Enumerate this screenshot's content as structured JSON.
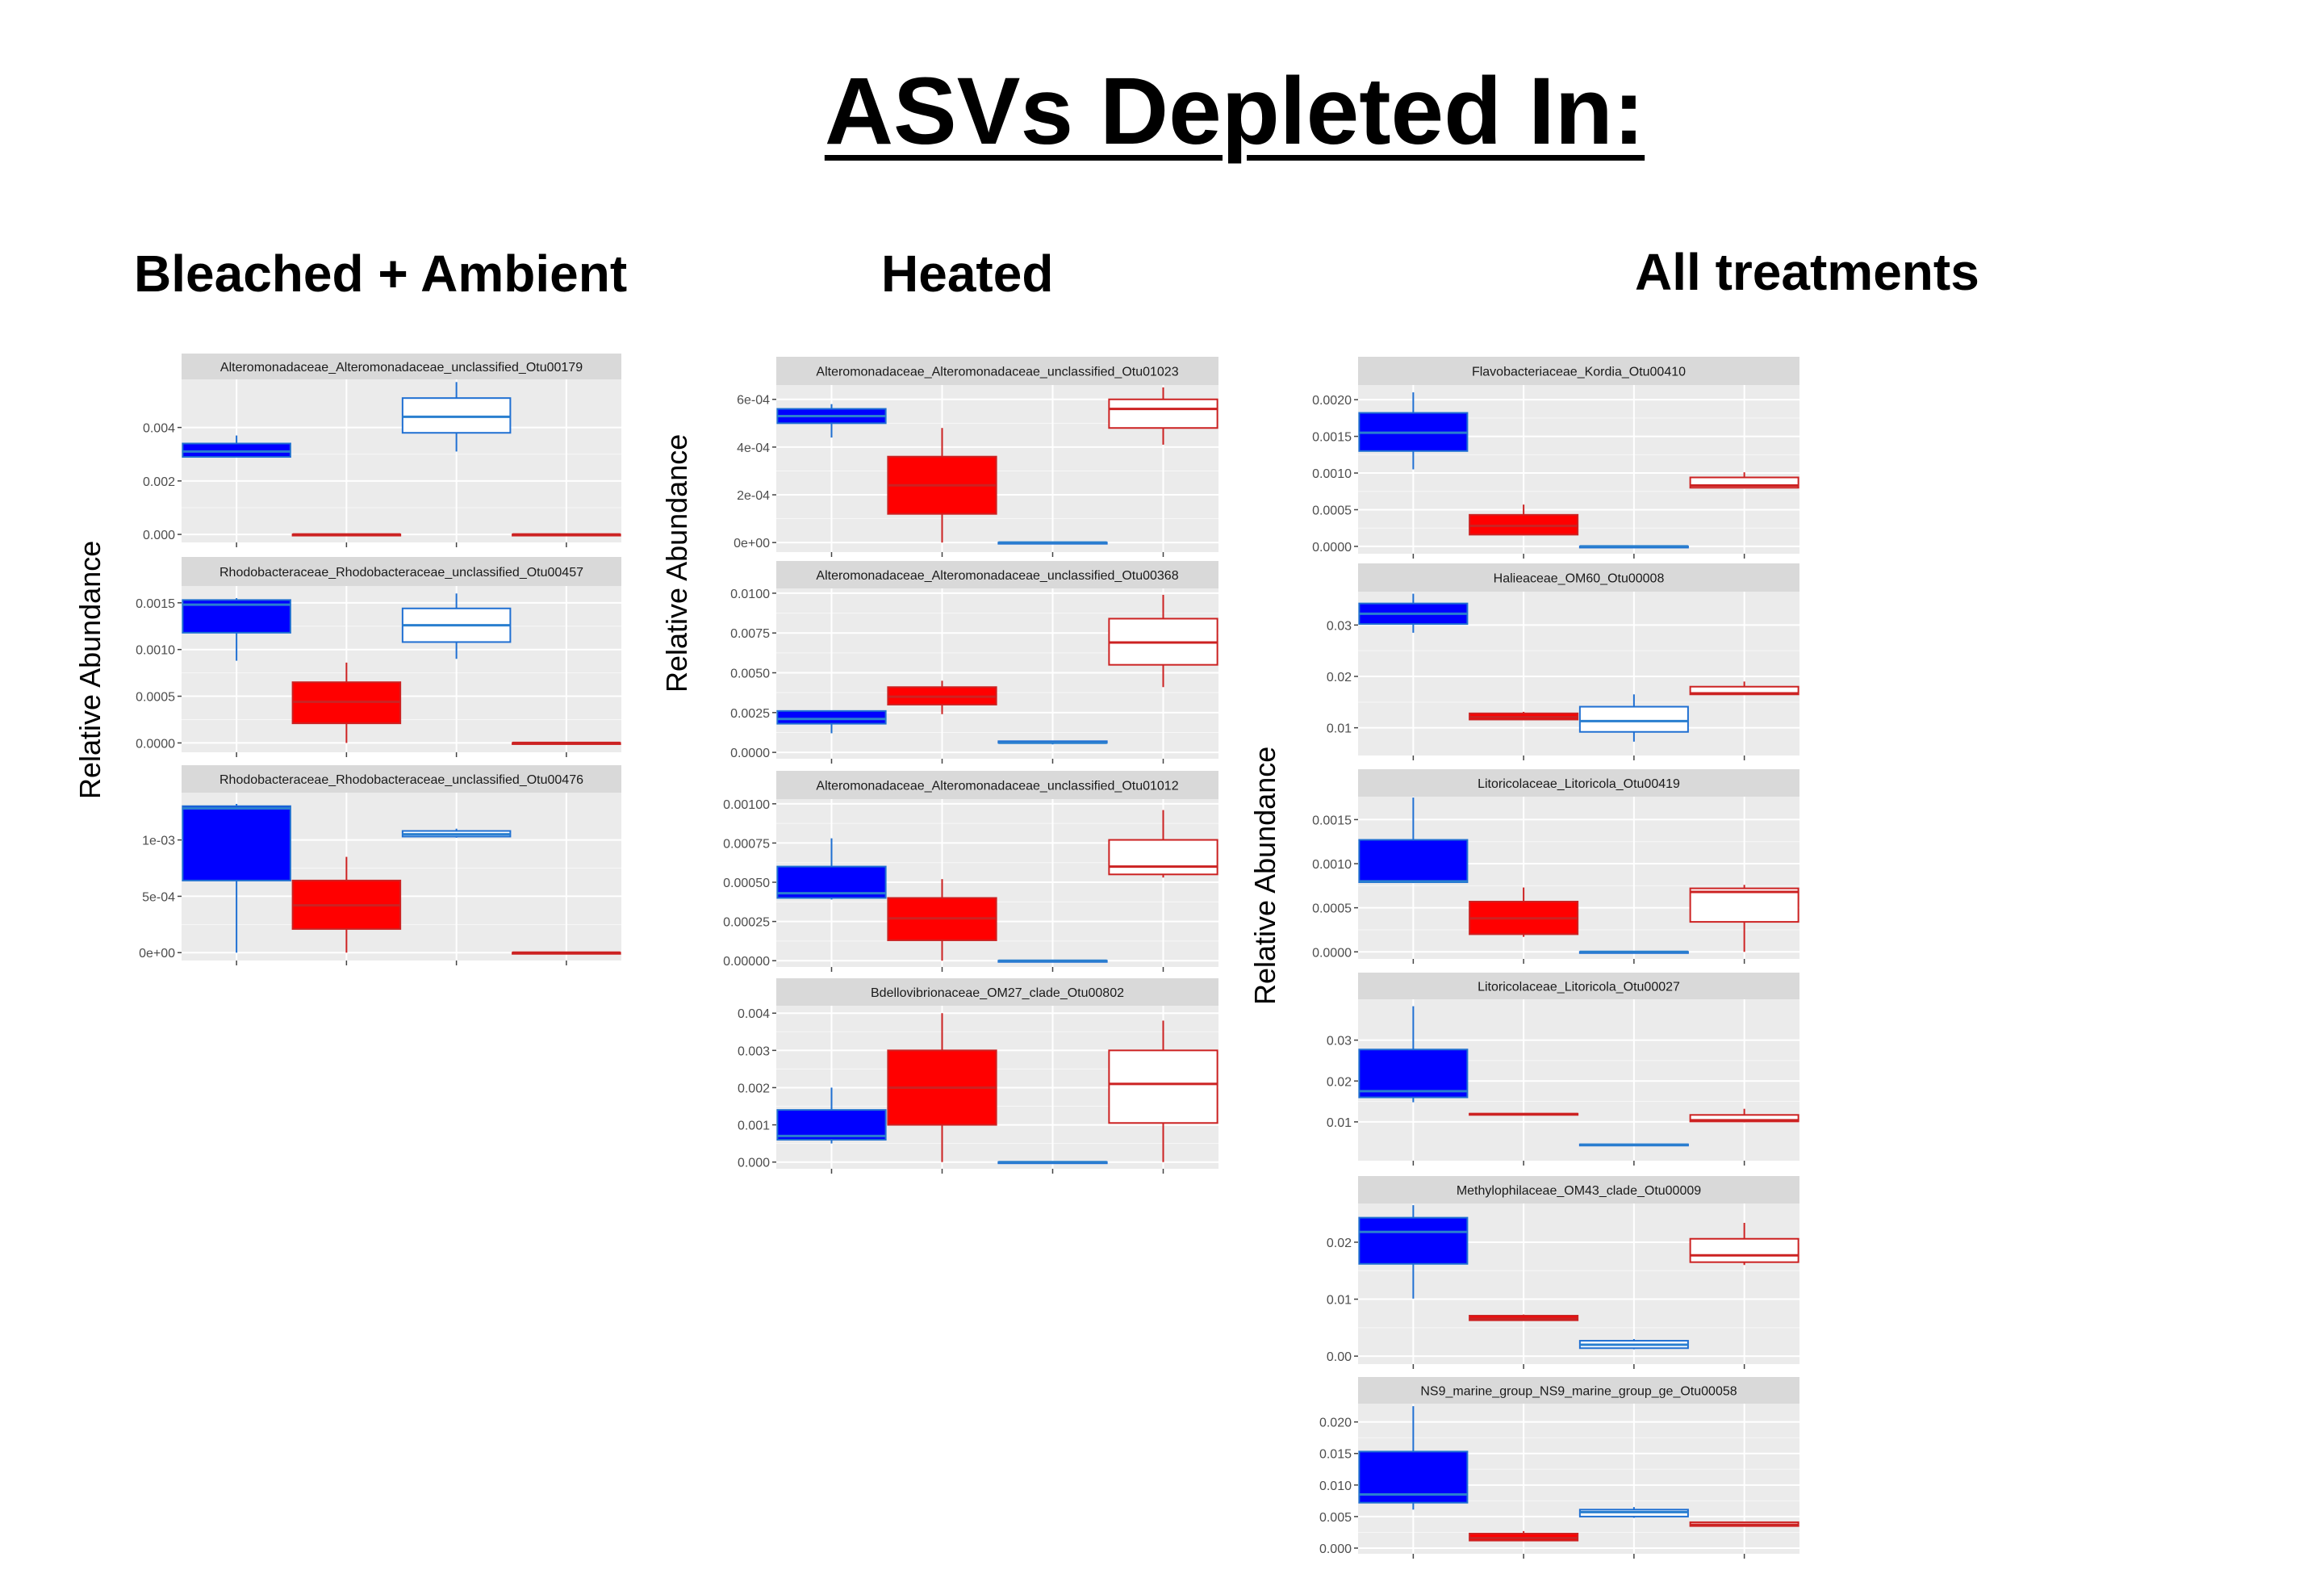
{
  "title": "ASVs Depleted In:",
  "colors": {
    "blue_fill": "#0000ff",
    "blue_stroke": "#1f6fd2",
    "blue_median": "#2a7fcf",
    "red_fill": "#ff0000",
    "red_stroke": "#cc2222",
    "panel_bg": "#ebebeb",
    "strip_bg": "#d9d9d9",
    "grid": "#ffffff"
  },
  "groups": [
    {
      "heading": "Bleached + Ambient",
      "ylabel": "Relative Abundance"
    },
    {
      "heading": "Heated",
      "ylabel": "Relative Abundance"
    },
    {
      "heading": "All treatments",
      "ylabel": "Relative Abundance"
    }
  ],
  "chart_data": [
    {
      "group": 0,
      "type": "box",
      "title": "Alteromonadaceae_Alteromonadaceae_unclassified_Otu00179",
      "ylim": [
        -0.0003,
        0.0058
      ],
      "yticks": [
        0,
        0.002,
        0.004
      ],
      "ytick_labels": [
        "0.000",
        "0.002",
        "0.004"
      ],
      "boxes": [
        {
          "style": "blue-filled",
          "min": 0.0029,
          "q1": 0.0029,
          "median": 0.0031,
          "q3": 0.0034,
          "max": 0.0037
        },
        {
          "style": "red-filled",
          "min": 0,
          "q1": 0,
          "median": 0,
          "q3": 0,
          "max": 0
        },
        {
          "style": "blue-open",
          "min": 0.0031,
          "q1": 0.0038,
          "median": 0.0044,
          "q3": 0.0051,
          "max": 0.0057
        },
        {
          "style": "red-open",
          "min": 0,
          "q1": 0,
          "median": 0,
          "q3": 0,
          "max": 0
        }
      ]
    },
    {
      "group": 0,
      "type": "box",
      "title": "Rhodobacteraceae_Rhodobacteraceae_unclassified_Otu00457",
      "ylim": [
        -0.0001,
        0.00168
      ],
      "yticks": [
        0,
        0.0005,
        0.001,
        0.0015
      ],
      "ytick_labels": [
        "0.0000",
        "0.0005",
        "0.0010",
        "0.0015"
      ],
      "boxes": [
        {
          "style": "blue-filled",
          "min": 0.00088,
          "q1": 0.00118,
          "median": 0.00148,
          "q3": 0.00153,
          "max": 0.00155
        },
        {
          "style": "red-filled",
          "min": 0,
          "q1": 0.00021,
          "median": 0.00044,
          "q3": 0.00065,
          "max": 0.00086
        },
        {
          "style": "blue-open",
          "min": 0.0009,
          "q1": 0.00108,
          "median": 0.00126,
          "q3": 0.00144,
          "max": 0.0016
        },
        {
          "style": "red-open",
          "min": 0,
          "q1": 0,
          "median": 0,
          "q3": 0,
          "max": 0
        }
      ]
    },
    {
      "group": 0,
      "type": "box",
      "title": "Rhodobacteraceae_Rhodobacteraceae_unclassified_Otu00476",
      "ylim": [
        -7e-05,
        0.00142
      ],
      "yticks": [
        0,
        0.0005,
        0.001
      ],
      "ytick_labels": [
        "0e+00",
        "5e-04",
        "1e-03"
      ],
      "boxes": [
        {
          "style": "blue-filled",
          "min": 0,
          "q1": 0.00064,
          "median": 0.00128,
          "q3": 0.0013,
          "max": 0.00132
        },
        {
          "style": "red-filled",
          "min": 0,
          "q1": 0.00021,
          "median": 0.00042,
          "q3": 0.00064,
          "max": 0.00085
        },
        {
          "style": "blue-open",
          "min": 0.00102,
          "q1": 0.00103,
          "median": 0.00105,
          "q3": 0.00108,
          "max": 0.0011
        },
        {
          "style": "red-open",
          "min": 0,
          "q1": 0,
          "median": 0,
          "q3": 0,
          "max": 0
        }
      ]
    },
    {
      "group": 1,
      "type": "box",
      "title": "Alteromonadaceae_Alteromonadaceae_unclassified_Otu01023",
      "ylim": [
        -4e-05,
        0.00066
      ],
      "yticks": [
        0,
        0.0002,
        0.0004,
        0.0006
      ],
      "ytick_labels": [
        "0e+00",
        "2e-04",
        "4e-04",
        "6e-04"
      ],
      "boxes": [
        {
          "style": "blue-filled",
          "min": 0.00044,
          "q1": 0.0005,
          "median": 0.00053,
          "q3": 0.00056,
          "max": 0.00058
        },
        {
          "style": "red-filled",
          "min": 0,
          "q1": 0.00012,
          "median": 0.00024,
          "q3": 0.00036,
          "max": 0.00048
        },
        {
          "style": "blue-open",
          "min": 0,
          "q1": 0,
          "median": 0,
          "q3": 0,
          "max": 0
        },
        {
          "style": "red-open",
          "min": 0.00041,
          "q1": 0.00048,
          "median": 0.00056,
          "q3": 0.0006,
          "max": 0.00065
        }
      ]
    },
    {
      "group": 1,
      "type": "box",
      "title": "Alteromonadaceae_Alteromonadaceae_unclassified_Otu00368",
      "ylim": [
        -0.0004,
        0.0103
      ],
      "yticks": [
        0,
        0.0025,
        0.005,
        0.0075,
        0.01
      ],
      "ytick_labels": [
        "0.0000",
        "0.0025",
        "0.0050",
        "0.0075",
        "0.0100"
      ],
      "boxes": [
        {
          "style": "blue-filled",
          "min": 0.0012,
          "q1": 0.0018,
          "median": 0.0021,
          "q3": 0.0026,
          "max": 0.0026
        },
        {
          "style": "red-filled",
          "min": 0.0024,
          "q1": 0.003,
          "median": 0.0035,
          "q3": 0.0041,
          "max": 0.0045
        },
        {
          "style": "blue-open",
          "min": 0.0005,
          "q1": 0.0006,
          "median": 0.0006,
          "q3": 0.0007,
          "max": 0.0007
        },
        {
          "style": "red-open",
          "min": 0.0041,
          "q1": 0.0055,
          "median": 0.0069,
          "q3": 0.0084,
          "max": 0.0099
        }
      ]
    },
    {
      "group": 1,
      "type": "box",
      "title": "Alteromonadaceae_Alteromonadaceae_unclassified_Otu01012",
      "ylim": [
        -4e-05,
        0.00103
      ],
      "yticks": [
        0,
        0.00025,
        0.0005,
        0.00075,
        0.001
      ],
      "ytick_labels": [
        "0.00000",
        "0.00025",
        "0.00050",
        "0.00075",
        "0.00100"
      ],
      "boxes": [
        {
          "style": "blue-filled",
          "min": 0.00039,
          "q1": 0.0004,
          "median": 0.00043,
          "q3": 0.0006,
          "max": 0.00078
        },
        {
          "style": "red-filled",
          "min": 0,
          "q1": 0.00013,
          "median": 0.00027,
          "q3": 0.0004,
          "max": 0.00052
        },
        {
          "style": "blue-open",
          "min": 0,
          "q1": 0,
          "median": 0,
          "q3": 0,
          "max": 0
        },
        {
          "style": "red-open",
          "min": 0.00053,
          "q1": 0.00055,
          "median": 0.0006,
          "q3": 0.00077,
          "max": 0.00096
        }
      ]
    },
    {
      "group": 1,
      "type": "box",
      "title": "Bdellovibrionaceae_OM27_clade_Otu00802",
      "ylim": [
        -0.00018,
        0.0042
      ],
      "yticks": [
        0,
        0.001,
        0.002,
        0.003,
        0.004
      ],
      "ytick_labels": [
        "0.000",
        "0.001",
        "0.002",
        "0.003",
        "0.004"
      ],
      "boxes": [
        {
          "style": "blue-filled",
          "min": 0.0005,
          "q1": 0.0006,
          "median": 0.0007,
          "q3": 0.0014,
          "max": 0.002
        },
        {
          "style": "red-filled",
          "min": 0,
          "q1": 0.001,
          "median": 0.002,
          "q3": 0.003,
          "max": 0.004
        },
        {
          "style": "blue-open",
          "min": 0,
          "q1": 0,
          "median": 0,
          "q3": 0,
          "max": 0
        },
        {
          "style": "red-open",
          "min": 0,
          "q1": 0.00105,
          "median": 0.0021,
          "q3": 0.003,
          "max": 0.0038
        }
      ]
    },
    {
      "group": 2,
      "type": "box",
      "title": "Flavobacteriaceae_Kordia_Otu00410",
      "ylim": [
        -0.0001,
        0.0022
      ],
      "yticks": [
        0,
        0.0005,
        0.001,
        0.0015,
        0.002
      ],
      "ytick_labels": [
        "0.0000",
        "0.0005",
        "0.0010",
        "0.0015",
        "0.0020"
      ],
      "boxes": [
        {
          "style": "blue-filled",
          "min": 0.00105,
          "q1": 0.0013,
          "median": 0.00155,
          "q3": 0.00182,
          "max": 0.0021
        },
        {
          "style": "red-filled",
          "min": 0.00015,
          "q1": 0.00016,
          "median": 0.00028,
          "q3": 0.00043,
          "max": 0.00057
        },
        {
          "style": "blue-open",
          "min": 0,
          "q1": 0,
          "median": 0,
          "q3": 0,
          "max": 0
        },
        {
          "style": "red-open",
          "min": 0.00079,
          "q1": 0.0008,
          "median": 0.00083,
          "q3": 0.00094,
          "max": 0.00101
        }
      ]
    },
    {
      "group": 2,
      "type": "box",
      "title": "Halieaceae_OM60_Otu00008",
      "ylim": [
        0.0046,
        0.0365
      ],
      "yticks": [
        0.01,
        0.02,
        0.03
      ],
      "ytick_labels": [
        "0.01",
        "0.02",
        "0.03"
      ],
      "boxes": [
        {
          "style": "blue-filled",
          "min": 0.0285,
          "q1": 0.0302,
          "median": 0.0322,
          "q3": 0.0342,
          "max": 0.0361
        },
        {
          "style": "red-filled",
          "min": 0.0115,
          "q1": 0.0116,
          "median": 0.0121,
          "q3": 0.0128,
          "max": 0.0131
        },
        {
          "style": "blue-open",
          "min": 0.0073,
          "q1": 0.0092,
          "median": 0.0113,
          "q3": 0.0141,
          "max": 0.0165
        },
        {
          "style": "red-open",
          "min": 0.0164,
          "q1": 0.0165,
          "median": 0.0167,
          "q3": 0.018,
          "max": 0.019
        }
      ]
    },
    {
      "group": 2,
      "type": "box",
      "title": "Litoricolaceae_Litoricola_Otu00419",
      "ylim": [
        -8e-05,
        0.00176
      ],
      "yticks": [
        0,
        0.0005,
        0.001,
        0.0015
      ],
      "ytick_labels": [
        "0.0000",
        "0.0005",
        "0.0010",
        "0.0015"
      ],
      "boxes": [
        {
          "style": "blue-filled",
          "min": 0.00078,
          "q1": 0.00079,
          "median": 0.0008,
          "q3": 0.00127,
          "max": 0.00175
        },
        {
          "style": "red-filled",
          "min": 0.00017,
          "q1": 0.0002,
          "median": 0.00038,
          "q3": 0.00057,
          "max": 0.00073
        },
        {
          "style": "blue-open",
          "min": 0,
          "q1": 0,
          "median": 0,
          "q3": 0,
          "max": 0
        },
        {
          "style": "red-open",
          "min": 0,
          "q1": 0.00034,
          "median": 0.00068,
          "q3": 0.00072,
          "max": 0.00076
        }
      ]
    },
    {
      "group": 2,
      "type": "box",
      "title": "Litoricolaceae_Litoricola_Otu00027",
      "ylim": [
        0.0005,
        0.04
      ],
      "yticks": [
        0.01,
        0.02,
        0.03
      ],
      "ytick_labels": [
        "0.01",
        "0.02",
        "0.03"
      ],
      "boxes": [
        {
          "style": "blue-filled",
          "min": 0.0148,
          "q1": 0.016,
          "median": 0.0175,
          "q3": 0.0277,
          "max": 0.0383
        },
        {
          "style": "red-filled",
          "min": 0.0118,
          "q1": 0.0118,
          "median": 0.0119,
          "q3": 0.012,
          "max": 0.012
        },
        {
          "style": "blue-open",
          "min": 0.0043,
          "q1": 0.0043,
          "median": 0.0044,
          "q3": 0.0045,
          "max": 0.0045
        },
        {
          "style": "red-open",
          "min": 0.0099,
          "q1": 0.0101,
          "median": 0.0104,
          "q3": 0.0117,
          "max": 0.0132
        }
      ]
    },
    {
      "group": 2,
      "type": "box",
      "title": "Methylophilaceae_OM43_clade_Otu00009",
      "ylim": [
        -0.0014,
        0.0268
      ],
      "yticks": [
        0,
        0.01,
        0.02
      ],
      "ytick_labels": [
        "0.00",
        "0.01",
        "0.02"
      ],
      "boxes": [
        {
          "style": "blue-filled",
          "min": 0.0101,
          "q1": 0.0162,
          "median": 0.0218,
          "q3": 0.0243,
          "max": 0.0265
        },
        {
          "style": "red-filled",
          "min": 0.0063,
          "q1": 0.0063,
          "median": 0.0066,
          "q3": 0.0071,
          "max": 0.0073
        },
        {
          "style": "blue-open",
          "min": 0.0012,
          "q1": 0.0014,
          "median": 0.002,
          "q3": 0.0027,
          "max": 0.003
        },
        {
          "style": "red-open",
          "min": 0.016,
          "q1": 0.0165,
          "median": 0.0177,
          "q3": 0.0206,
          "max": 0.0234
        }
      ]
    },
    {
      "group": 2,
      "type": "box",
      "title": "NS9_marine_group_NS9_marine_group_ge_Otu00058",
      "ylim": [
        -0.0009,
        0.0229
      ],
      "yticks": [
        0,
        0.005,
        0.01,
        0.015,
        0.02
      ],
      "ytick_labels": [
        "0.000",
        "0.005",
        "0.010",
        "0.015",
        "0.020"
      ],
      "boxes": [
        {
          "style": "blue-filled",
          "min": 0.0061,
          "q1": 0.0072,
          "median": 0.0085,
          "q3": 0.0153,
          "max": 0.0225
        },
        {
          "style": "red-filled",
          "min": 0.0011,
          "q1": 0.0012,
          "median": 0.0016,
          "q3": 0.0023,
          "max": 0.0027
        },
        {
          "style": "blue-open",
          "min": 0.0048,
          "q1": 0.005,
          "median": 0.0057,
          "q3": 0.0061,
          "max": 0.0065
        },
        {
          "style": "red-open",
          "min": 0.0034,
          "q1": 0.0035,
          "median": 0.0037,
          "q3": 0.0041,
          "max": 0.0042
        }
      ]
    }
  ]
}
